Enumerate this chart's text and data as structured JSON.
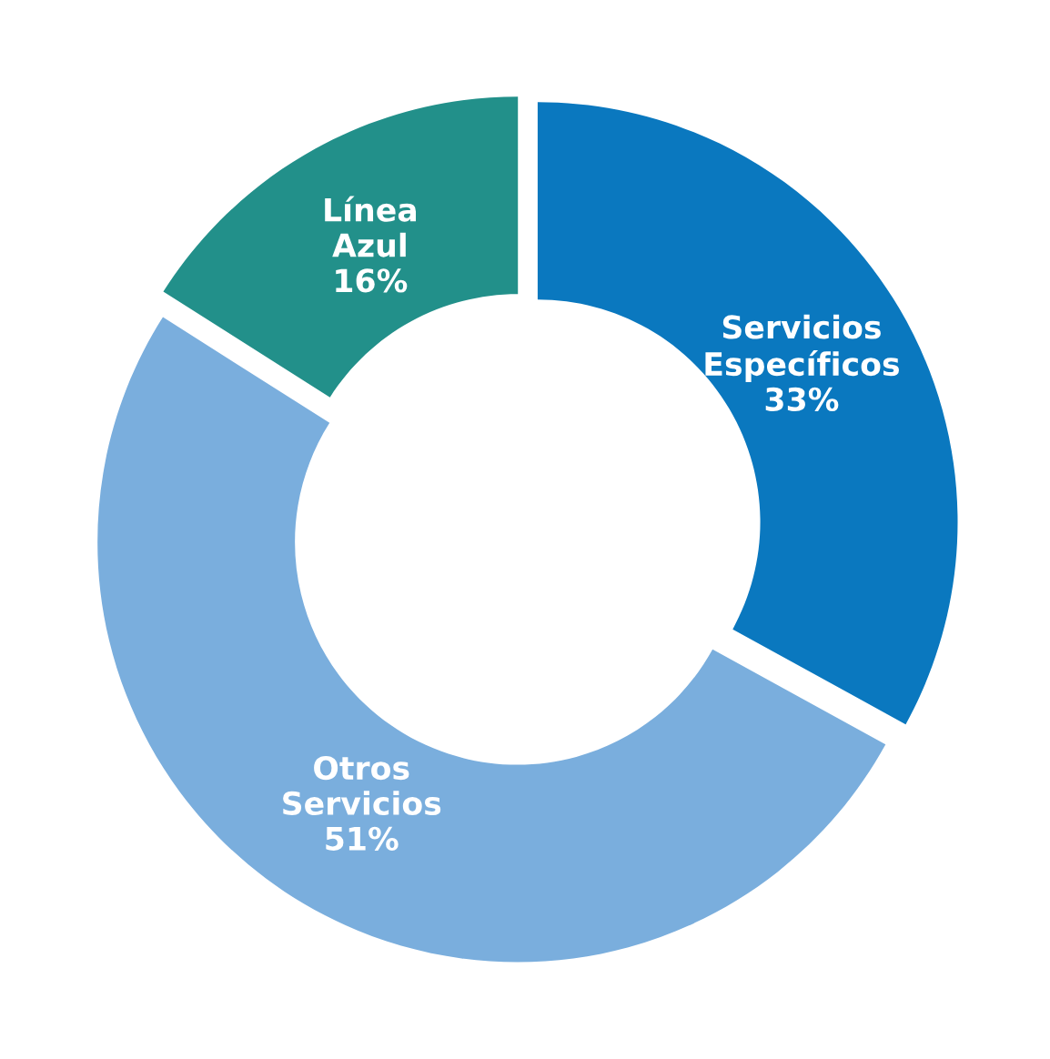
{
  "chart_data": {
    "type": "donut",
    "categories": [
      "Servicios Específicos",
      "Otros Servicios",
      "Línea Azul"
    ],
    "values": [
      33,
      51,
      16
    ],
    "colors": [
      "#0a78bf",
      "#7aaedd",
      "#22908a"
    ],
    "value_labels": [
      "33%",
      "51%",
      "16%"
    ],
    "legend": false
  }
}
